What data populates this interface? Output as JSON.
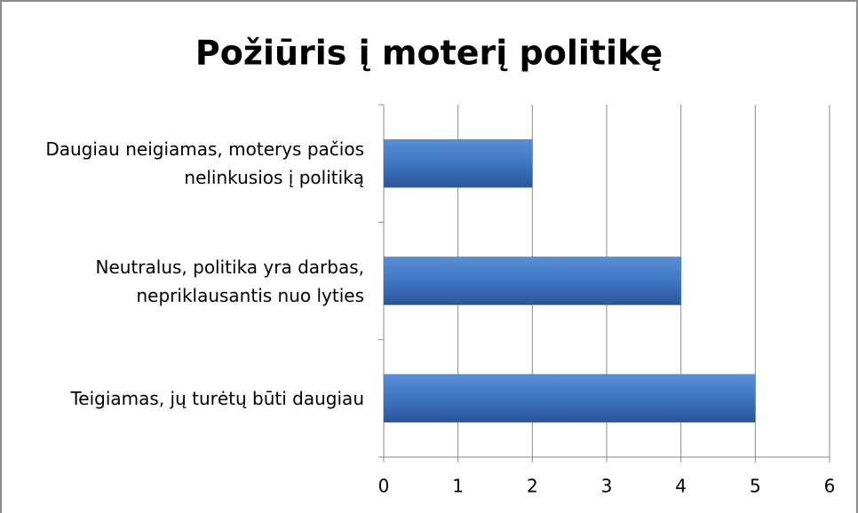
{
  "chart_data": {
    "type": "hbar",
    "title": "Požiūris į moterį politikę",
    "categories": [
      "Daugiau neigiamas, moterys pačios nelinkusios į politiką",
      "Neutralus, politika yra darbas, nepriklausantis nuo lyties",
      "Teigiamas, jų turėtų būti daugiau"
    ],
    "values": [
      2,
      4,
      5
    ],
    "color": "#4277c0",
    "xlim": [
      0,
      6
    ],
    "xticks": [
      0,
      1,
      2,
      3,
      4,
      5,
      6
    ],
    "grid": true
  }
}
